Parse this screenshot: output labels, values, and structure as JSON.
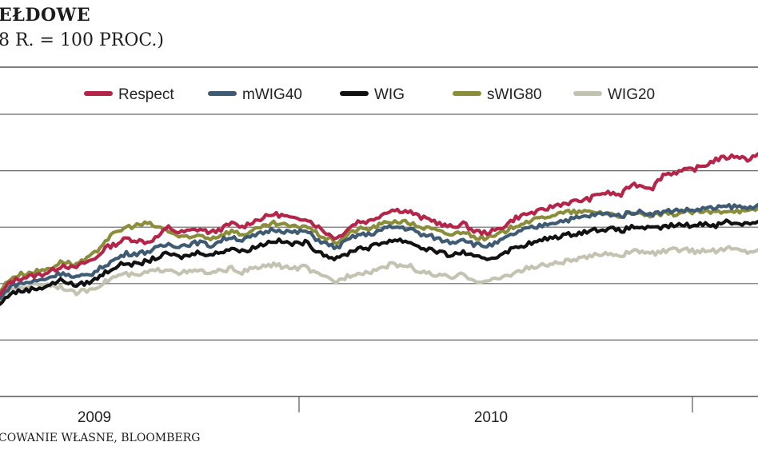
{
  "header": {
    "title": "EŁDOWE",
    "subtitle": "8 R. = 100 PROC.)"
  },
  "footer": {
    "source": "COWANIE WŁASNE, BLOOMBERG"
  },
  "chart_data": {
    "type": "line",
    "x_tick_labels": [
      "2009",
      "2010"
    ],
    "legend_position": "top",
    "grid": "horizontal",
    "series": [
      {
        "name": "Respect",
        "color": "#b5254a",
        "values": [
          94,
          101,
          103,
          104,
          105,
          107,
          110,
          108,
          111,
          113,
          119,
          121,
          124,
          123,
          122,
          125,
          130,
          127,
          128,
          129,
          127,
          129,
          132,
          130,
          133,
          135,
          137,
          136,
          134,
          135,
          131,
          127,
          124,
          129,
          133,
          133,
          136,
          139,
          139,
          138,
          135,
          134,
          131,
          130,
          132,
          128,
          127,
          128,
          131,
          135,
          137,
          138,
          140,
          142,
          143,
          144,
          145,
          148,
          148,
          147,
          153,
          152,
          151,
          158,
          159,
          160,
          161,
          163,
          166,
          167,
          168,
          166,
          169
        ]
      },
      {
        "name": "mWIG40",
        "color": "#3e5b73",
        "values": [
          92,
          99,
          100,
          101,
          102,
          104,
          106,
          103,
          104,
          106,
          110,
          113,
          116,
          116,
          117,
          119,
          121,
          120,
          121,
          122,
          120,
          123,
          125,
          123,
          125,
          127,
          129,
          128,
          127,
          128,
          124,
          121,
          119,
          123,
          126,
          126,
          128,
          130,
          130,
          129,
          126,
          125,
          123,
          122,
          124,
          121,
          120,
          121,
          124,
          127,
          129,
          130,
          132,
          133,
          134,
          135,
          136,
          137,
          137,
          136,
          138,
          138,
          137,
          138,
          139,
          139,
          139,
          140,
          140,
          141,
          141,
          140,
          142
        ]
      },
      {
        "name": "WIG",
        "color": "#111111",
        "values": [
          89,
          95,
          96,
          97,
          98,
          100,
          102,
          99,
          100,
          102,
          106,
          109,
          111,
          110,
          112,
          114,
          116,
          114,
          115,
          117,
          115,
          117,
          119,
          117,
          119,
          121,
          123,
          122,
          121,
          122,
          118,
          115,
          113,
          116,
          119,
          119,
          121,
          123,
          123,
          122,
          119,
          118,
          116,
          115,
          117,
          114,
          113,
          114,
          117,
          119,
          121,
          122,
          124,
          125,
          126,
          127,
          128,
          129,
          129,
          128,
          130,
          130,
          129,
          130,
          131,
          131,
          131,
          132,
          131,
          133,
          132,
          132,
          133
        ]
      },
      {
        "name": "sWIG80",
        "color": "#8a8e3a",
        "values": [
          96,
          103,
          105,
          106,
          107,
          109,
          112,
          110,
          112,
          116,
          123,
          127,
          130,
          131,
          132,
          130,
          128,
          125,
          124,
          126,
          124,
          126,
          128,
          126,
          128,
          130,
          132,
          131,
          130,
          131,
          127,
          124,
          122,
          126,
          129,
          129,
          131,
          133,
          133,
          132,
          130,
          129,
          127,
          126,
          128,
          125,
          124,
          125,
          128,
          131,
          133,
          134,
          136,
          137,
          138,
          138,
          138,
          138,
          137,
          136,
          137,
          137,
          136,
          137,
          137,
          138,
          138,
          138,
          138,
          139,
          139,
          138,
          140
        ]
      },
      {
        "name": "WIG20",
        "color": "#c4c3b2",
        "values": [
          90,
          97,
          98,
          99,
          100,
          99,
          98,
          95,
          96,
          98,
          101,
          104,
          105,
          104,
          106,
          107,
          108,
          106,
          106,
          107,
          105,
          107,
          108,
          106,
          108,
          109,
          110,
          109,
          108,
          109,
          105,
          103,
          101,
          104,
          106,
          106,
          108,
          110,
          110,
          109,
          106,
          105,
          104,
          103,
          105,
          102,
          101,
          102,
          104,
          106,
          108,
          109,
          110,
          111,
          112,
          113,
          114,
          116,
          116,
          115,
          117,
          117,
          116,
          117,
          118,
          118,
          117,
          118,
          117,
          119,
          118,
          117,
          118
        ]
      }
    ]
  }
}
